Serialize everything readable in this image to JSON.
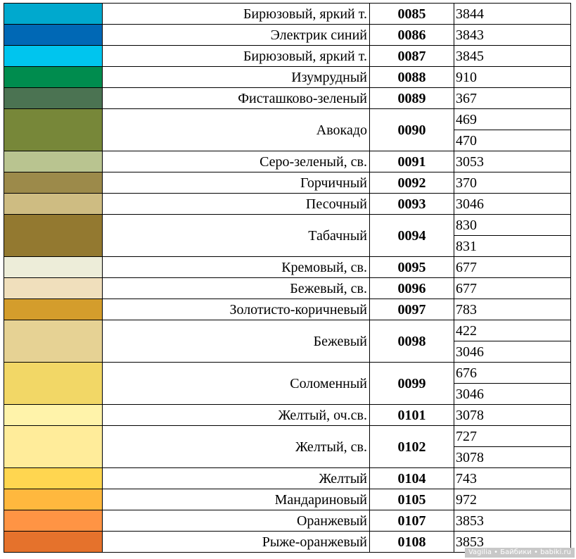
{
  "rows": [
    {
      "color": "#00A9CE",
      "name": "Бирюзовый, яркий т.",
      "code": "0085",
      "dmc": [
        "3844"
      ]
    },
    {
      "color": "#0068B5",
      "name": "Электрик синий",
      "code": "0086",
      "dmc": [
        "3843"
      ]
    },
    {
      "color": "#00C5EE",
      "name": "Бирюзовый, яркий т.",
      "code": "0087",
      "dmc": [
        "3845"
      ]
    },
    {
      "color": "#008C4E",
      "name": "Изумрудный",
      "code": "0088",
      "dmc": [
        "910"
      ]
    },
    {
      "color": "#4B7352",
      "name": "Фисташково-зеленый",
      "code": "0089",
      "dmc": [
        "367"
      ]
    },
    {
      "color": "#778739",
      "name": "Авокадо",
      "code": "0090",
      "dmc": [
        "469",
        "470"
      ]
    },
    {
      "color": "#B9C490",
      "name": "Серо-зеленый, св.",
      "code": "0091",
      "dmc": [
        "3053"
      ]
    },
    {
      "color": "#9C8A4A",
      "name": "Горчичный",
      "code": "0092",
      "dmc": [
        "370"
      ]
    },
    {
      "color": "#CEBC82",
      "name": "Песочный",
      "code": "0093",
      "dmc": [
        "3046"
      ]
    },
    {
      "color": "#937930",
      "name": "Табачный",
      "code": "0094",
      "dmc": [
        "830",
        "831"
      ]
    },
    {
      "color": "#EDEDD9",
      "name": "Кремовый, св.",
      "code": "0095",
      "dmc": [
        "677"
      ]
    },
    {
      "color": "#F0DFBC",
      "name": "Бежевый, св.",
      "code": "0096",
      "dmc": [
        "677"
      ]
    },
    {
      "color": "#D49D2C",
      "name": "Золотисто-коричневый",
      "code": "0097",
      "dmc": [
        "783"
      ]
    },
    {
      "color": "#E6D294",
      "name": "Бежевый",
      "code": "0098",
      "dmc": [
        "422",
        "3046"
      ]
    },
    {
      "color": "#F2D766",
      "name": "Соломенный",
      "code": "0099",
      "dmc": [
        "676",
        "3046"
      ]
    },
    {
      "color": "#FFF3AA",
      "name": "Желтый, оч.св.",
      "code": "0101",
      "dmc": [
        "3078"
      ]
    },
    {
      "color": "#FFEC9A",
      "name": "Желтый, св.",
      "code": "0102",
      "dmc": [
        "727",
        "3078"
      ]
    },
    {
      "color": "#FFD650",
      "name": "Желтый",
      "code": "0104",
      "dmc": [
        "743"
      ]
    },
    {
      "color": "#FFB83E",
      "name": "Мандариновый",
      "code": "0105",
      "dmc": [
        "972"
      ]
    },
    {
      "color": "#FF9444",
      "name": "Оранжевый",
      "code": "0107",
      "dmc": [
        "3853"
      ]
    },
    {
      "color": "#E5722C",
      "name": "Рыже-оранжевый",
      "code": "0108",
      "dmc": [
        "3853"
      ]
    }
  ],
  "watermark": "Vagilia • Байбики • babiki.ru"
}
